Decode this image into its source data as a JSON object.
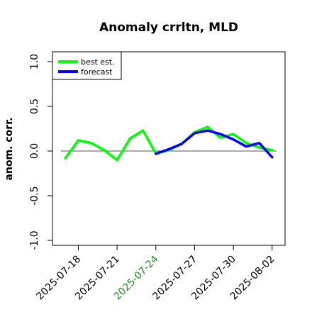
{
  "chart_data": {
    "type": "line",
    "title": "Anomaly crrltn, MLD",
    "xlabel": "",
    "ylabel": "anom. corr.",
    "ylim": [
      -1.0,
      1.0
    ],
    "yticks": [
      "-1.0",
      "-0.5",
      "0.0",
      "0.5",
      "1.0"
    ],
    "xlim": [
      "2025-07-16",
      "2025-08-03"
    ],
    "xticks": [
      "2025-07-18",
      "2025-07-21",
      "2025-07-24",
      "2025-07-27",
      "2025-07-30",
      "2025-08-02"
    ],
    "highlight_tick": "2025-07-24",
    "highlight_color": "#228B22",
    "reference_line": 0.0,
    "legend_position": "top-left",
    "series": [
      {
        "name": "best est.",
        "color": "#00ff00",
        "x": [
          "2025-07-17",
          "2025-07-18",
          "2025-07-19",
          "2025-07-20",
          "2025-07-21",
          "2025-07-22",
          "2025-07-23",
          "2025-07-24",
          "2025-07-25",
          "2025-07-26",
          "2025-07-27",
          "2025-07-28",
          "2025-07-29",
          "2025-07-30",
          "2025-07-31",
          "2025-08-01",
          "2025-08-02"
        ],
        "values": [
          -0.08,
          0.12,
          0.09,
          0.01,
          -0.1,
          0.14,
          0.23,
          -0.03,
          0.01,
          0.08,
          0.21,
          0.27,
          0.15,
          0.19,
          0.09,
          0.04,
          0.01
        ]
      },
      {
        "name": "forecast",
        "color": "#0000ff",
        "x": [
          "2025-07-24",
          "2025-07-25",
          "2025-07-26",
          "2025-07-27",
          "2025-07-28",
          "2025-07-29",
          "2025-07-30",
          "2025-07-31",
          "2025-08-01",
          "2025-08-02"
        ],
        "values": [
          -0.03,
          0.02,
          0.08,
          0.2,
          0.23,
          0.19,
          0.13,
          0.05,
          0.09,
          -0.07
        ]
      }
    ]
  }
}
